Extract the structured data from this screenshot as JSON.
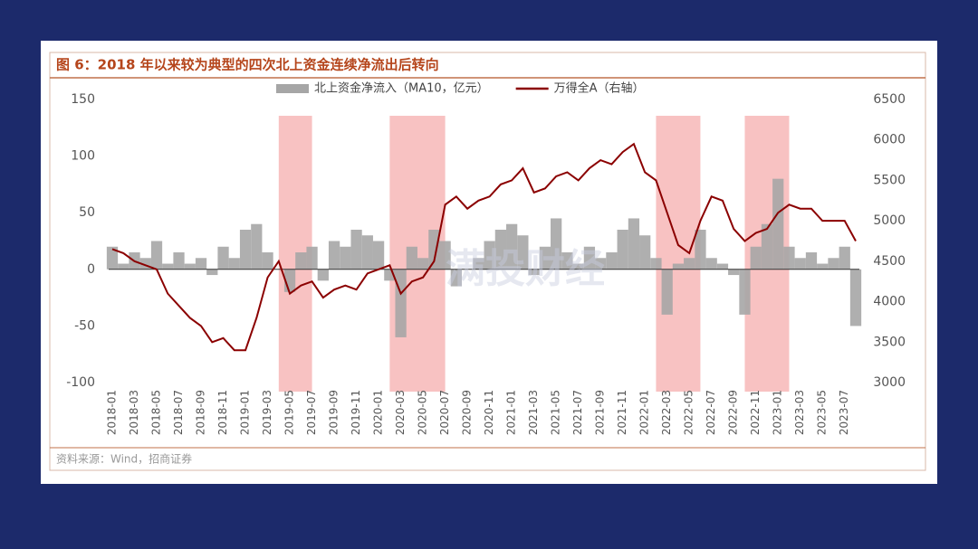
{
  "chart_data": {
    "type": "combo",
    "title": "图 6：2018 年以来较为典型的四次北上资金连续净流出后转向",
    "source": "资料来源：Wind，招商证券",
    "watermark": "满投财经",
    "x": [
      "2018-01",
      "2018-02",
      "2018-03",
      "2018-04",
      "2018-05",
      "2018-06",
      "2018-07",
      "2018-08",
      "2018-09",
      "2018-10",
      "2018-11",
      "2018-12",
      "2019-01",
      "2019-02",
      "2019-03",
      "2019-04",
      "2019-05",
      "2019-06",
      "2019-07",
      "2019-08",
      "2019-09",
      "2019-10",
      "2019-11",
      "2019-12",
      "2020-01",
      "2020-02",
      "2020-03",
      "2020-04",
      "2020-05",
      "2020-06",
      "2020-07",
      "2020-08",
      "2020-09",
      "2020-10",
      "2020-11",
      "2020-12",
      "2021-01",
      "2021-02",
      "2021-03",
      "2021-04",
      "2021-05",
      "2021-06",
      "2021-07",
      "2021-08",
      "2021-09",
      "2021-10",
      "2021-11",
      "2021-12",
      "2022-01",
      "2022-02",
      "2022-03",
      "2022-04",
      "2022-05",
      "2022-06",
      "2022-07",
      "2022-08",
      "2022-09",
      "2022-10",
      "2022-11",
      "2022-12",
      "2023-01",
      "2023-02",
      "2023-03",
      "2023-04",
      "2023-05",
      "2023-06",
      "2023-07",
      "2023-08"
    ],
    "xticks": [
      "2018-01",
      "2018-03",
      "2018-05",
      "2018-07",
      "2018-09",
      "2018-11",
      "2019-01",
      "2019-03",
      "2019-05",
      "2019-07",
      "2019-09",
      "2019-11",
      "2020-01",
      "2020-03",
      "2020-05",
      "2020-07",
      "2020-09",
      "2020-11",
      "2021-01",
      "2021-03",
      "2021-05",
      "2021-07",
      "2021-09",
      "2021-11",
      "2022-01",
      "2022-03",
      "2022-05",
      "2022-07",
      "2022-09",
      "2022-11",
      "2023-01",
      "2023-03",
      "2023-05",
      "2023-07"
    ],
    "series": [
      {
        "name": "北上资金净流入（MA10，亿元）",
        "type": "bar",
        "color": "#a6a6a6",
        "values": [
          20,
          5,
          15,
          10,
          25,
          5,
          15,
          5,
          10,
          -5,
          20,
          10,
          35,
          40,
          15,
          0,
          -20,
          15,
          20,
          -10,
          25,
          20,
          35,
          30,
          25,
          -10,
          -60,
          20,
          10,
          35,
          25,
          -15,
          0,
          10,
          25,
          35,
          40,
          30,
          -5,
          20,
          45,
          15,
          5,
          20,
          10,
          15,
          35,
          45,
          30,
          10,
          -40,
          5,
          10,
          35,
          10,
          5,
          -5,
          -40,
          20,
          40,
          80,
          20,
          10,
          15,
          5,
          10,
          20,
          -50
        ]
      },
      {
        "name": "万得全A（右轴）",
        "type": "line",
        "axis": "y2",
        "color": "#8b0000",
        "values": [
          4650,
          4600,
          4500,
          4450,
          4400,
          4100,
          3950,
          3800,
          3700,
          3500,
          3550,
          3400,
          3400,
          3800,
          4300,
          4500,
          4100,
          4200,
          4250,
          4050,
          4150,
          4200,
          4150,
          4350,
          4400,
          4450,
          4100,
          4250,
          4300,
          4500,
          5200,
          5300,
          5150,
          5250,
          5300,
          5450,
          5500,
          5650,
          5350,
          5400,
          5550,
          5600,
          5500,
          5650,
          5750,
          5700,
          5850,
          5950,
          5600,
          5500,
          5100,
          4700,
          4600,
          5000,
          5300,
          5250,
          4900,
          4750,
          4850,
          4900,
          5100,
          5200,
          5150,
          5150,
          5000,
          5000,
          5000,
          4750
        ]
      }
    ],
    "highlight_ranges": [
      {
        "start": "2019-04",
        "end": "2019-07",
        "color": "#f7b7b7"
      },
      {
        "start": "2020-02",
        "end": "2020-07",
        "color": "#f7b7b7"
      },
      {
        "start": "2022-02",
        "end": "2022-06",
        "color": "#f7b7b7"
      },
      {
        "start": "2022-10",
        "end": "2023-02",
        "color": "#f7b7b7"
      }
    ],
    "ylim": [
      -100,
      150
    ],
    "yticks": [
      -100,
      -50,
      0,
      50,
      100,
      150
    ],
    "y2lim": [
      3000,
      6500
    ],
    "y2ticks": [
      3000,
      3500,
      4000,
      4500,
      5000,
      5500,
      6000,
      6500
    ],
    "legend": "top"
  }
}
